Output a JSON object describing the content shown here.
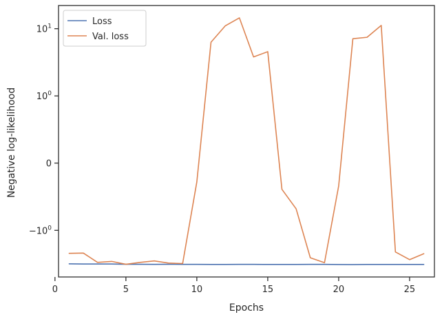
{
  "chart_data": {
    "type": "line",
    "xlabel": "Epochs",
    "ylabel": "Negative log-likelihood",
    "yscale": "symlog",
    "xlim": [
      0.25,
      26.75
    ],
    "xticks": [
      0,
      5,
      10,
      15,
      20,
      25
    ],
    "yticks": [
      {
        "value": 10,
        "base": "10",
        "exp": "1"
      },
      {
        "value": 1,
        "base": "10",
        "exp": "0"
      },
      {
        "value": 0,
        "base": "0",
        "exp": ""
      },
      {
        "value": -1,
        "base": "−10",
        "exp": "0"
      }
    ],
    "grid": false,
    "legend": "top-left",
    "x": [
      1,
      2,
      3,
      4,
      5,
      6,
      7,
      8,
      9,
      10,
      11,
      12,
      13,
      14,
      15,
      16,
      17,
      18,
      19,
      20,
      21,
      22,
      23,
      24,
      25,
      26
    ],
    "series": [
      {
        "name": "Loss",
        "color": "#4c72b0",
        "values": [
          -3.15,
          -3.17,
          -3.17,
          -3.17,
          -3.2,
          -3.2,
          -3.21,
          -3.2,
          -3.21,
          -3.21,
          -3.22,
          -3.22,
          -3.21,
          -3.21,
          -3.22,
          -3.22,
          -3.22,
          -3.21,
          -3.21,
          -3.23,
          -3.24,
          -3.22,
          -3.22,
          -3.22,
          -3.22,
          -3.22
        ]
      },
      {
        "name": "Val. loss",
        "color": "#dd8452",
        "values": [
          -2.2,
          -2.18,
          -3.0,
          -2.9,
          -3.2,
          -3.0,
          -2.85,
          -3.07,
          -3.12,
          -0.28,
          6.3,
          11.0,
          14.5,
          3.8,
          4.55,
          -0.39,
          -0.68,
          -2.56,
          -3.03,
          -0.34,
          7.1,
          7.45,
          11.2,
          -2.1,
          -2.73,
          -2.23
        ]
      }
    ]
  }
}
